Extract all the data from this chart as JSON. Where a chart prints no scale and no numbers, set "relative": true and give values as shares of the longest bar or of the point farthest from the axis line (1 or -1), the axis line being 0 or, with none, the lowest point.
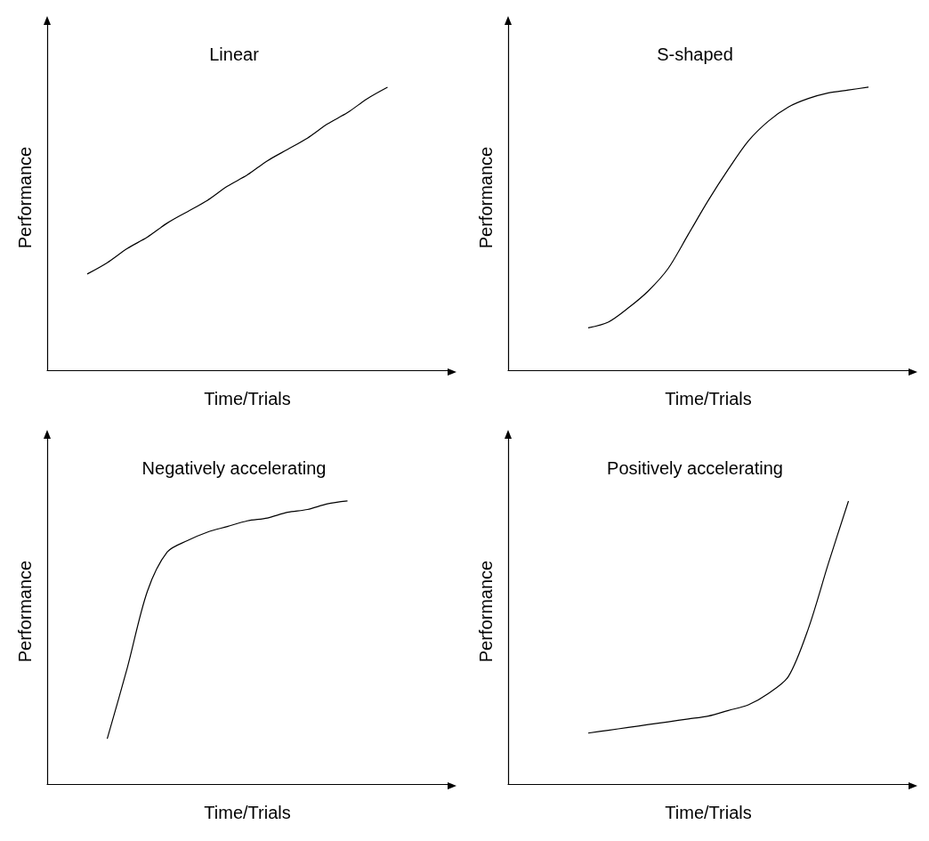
{
  "chart_data": [
    {
      "type": "line",
      "title": "Linear",
      "xlabel": "Time/Trials",
      "ylabel": "Performance",
      "relative": true,
      "marker": "none",
      "color": "#000000",
      "categories": [
        null,
        null,
        null,
        null,
        null,
        null,
        null,
        null,
        null,
        null,
        null,
        null,
        null,
        null,
        null,
        null,
        null,
        null,
        null,
        null,
        null
      ],
      "values": [
        null,
        null,
        0.34,
        0.38,
        0.43,
        0.47,
        0.52,
        0.56,
        0.6,
        0.65,
        0.69,
        0.74,
        0.78,
        0.82,
        0.87,
        0.91,
        0.96,
        1.0,
        null,
        null,
        null
      ]
    },
    {
      "type": "line",
      "title": "S-shaped",
      "xlabel": "Time/Trials",
      "ylabel": "Performance",
      "relative": true,
      "marker": "none",
      "color": "#000000",
      "categories": [
        null,
        null,
        null,
        null,
        null,
        null,
        null,
        null,
        null,
        null,
        null,
        null,
        null,
        null,
        null,
        null,
        null,
        null,
        null,
        null,
        null
      ],
      "values": [
        null,
        null,
        null,
        null,
        0.15,
        0.17,
        0.22,
        0.28,
        0.36,
        0.48,
        0.6,
        0.71,
        0.81,
        0.88,
        0.93,
        0.96,
        0.98,
        0.99,
        1.0,
        null,
        null
      ]
    },
    {
      "type": "line",
      "title": "Negatively accelerating",
      "xlabel": "Time/Trials",
      "ylabel": "Performance",
      "relative": true,
      "marker": "none",
      "color": "#000000",
      "categories": [
        null,
        null,
        null,
        null,
        null,
        null,
        null,
        null,
        null,
        null,
        null,
        null,
        null,
        null,
        null,
        null,
        null,
        null,
        null,
        null,
        null
      ],
      "values": [
        null,
        null,
        null,
        0.16,
        0.41,
        0.68,
        0.82,
        0.86,
        0.89,
        0.91,
        0.93,
        0.94,
        0.96,
        0.97,
        0.99,
        1.0,
        null,
        null,
        null,
        null,
        null
      ]
    },
    {
      "type": "line",
      "title": "Positively accelerating",
      "xlabel": "Time/Trials",
      "ylabel": "Performance",
      "relative": true,
      "marker": "none",
      "color": "#000000",
      "categories": [
        null,
        null,
        null,
        null,
        null,
        null,
        null,
        null,
        null,
        null,
        null,
        null,
        null,
        null,
        null,
        null,
        null,
        null,
        null,
        null,
        null
      ],
      "values": [
        null,
        null,
        null,
        null,
        0.18,
        0.19,
        0.2,
        0.21,
        0.22,
        0.23,
        0.24,
        0.26,
        0.28,
        0.32,
        0.38,
        0.55,
        0.78,
        1.0,
        null,
        null,
        null
      ]
    }
  ]
}
